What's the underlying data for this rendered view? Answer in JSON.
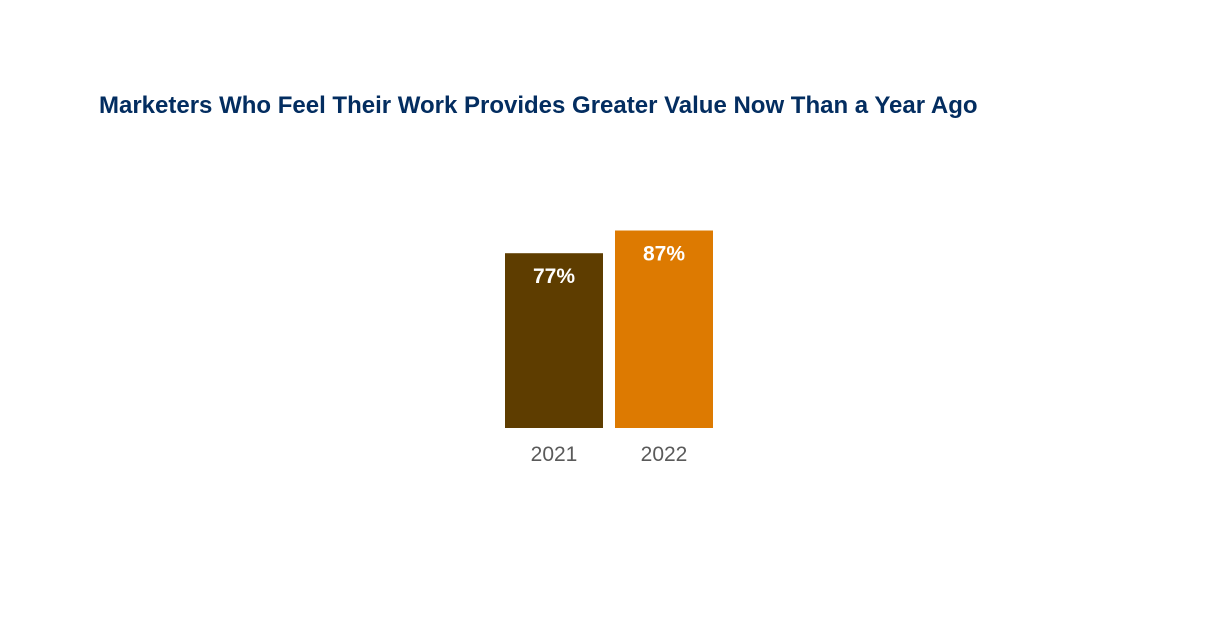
{
  "chart_data": {
    "type": "bar",
    "title": "Marketers Who Feel Their Work Provides Greater Value Now Than a Year Ago",
    "categories": [
      "2021",
      "2022"
    ],
    "values": [
      77,
      87
    ],
    "value_labels": [
      "77%",
      "87%"
    ],
    "colors": [
      "#5e3d00",
      "#dd7a01"
    ],
    "xlabel": "",
    "ylabel": "",
    "ylim": [
      0,
      100
    ],
    "grid": false,
    "legend": "none"
  }
}
